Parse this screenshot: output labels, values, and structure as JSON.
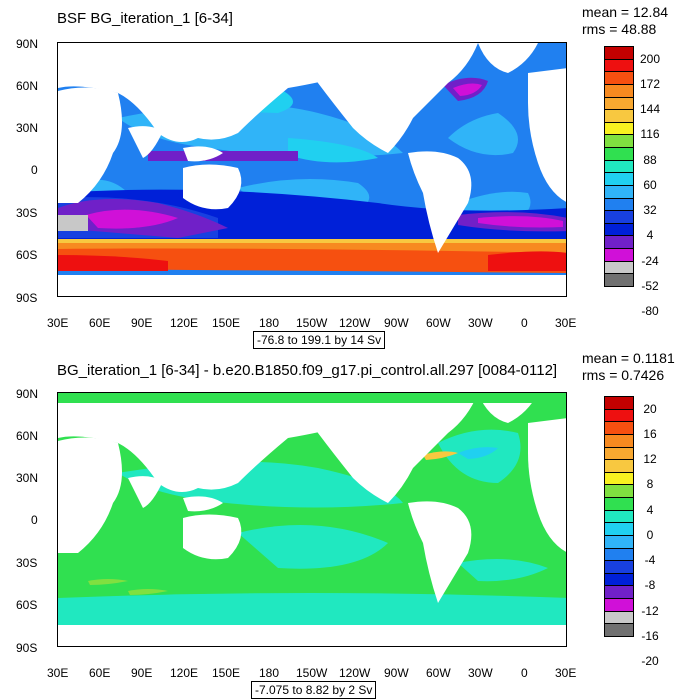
{
  "top_panel": {
    "title": "BSF BG_iteration_1 [6-34]",
    "mean_text": "mean = 12.84",
    "rms_text": "rms = 48.88",
    "range_text": "-76.8 to 199.1 by 14 Sv",
    "colorbar_labels": [
      "200",
      "172",
      "144",
      "116",
      "88",
      "60",
      "32",
      "4",
      "-24",
      "-52",
      "-80"
    ],
    "colorbar_colors": [
      "#c40000",
      "#ee1010",
      "#f65010",
      "#f78a20",
      "#f8a830",
      "#f8c840",
      "#f8f020",
      "#80e040",
      "#30e050",
      "#20e8c0",
      "#20d0f0",
      "#30b4f8",
      "#2080f0",
      "#1840e0",
      "#0020d8",
      "#7020c8",
      "#d010d8",
      "#c8c8c8",
      "#707070"
    ]
  },
  "bottom_panel": {
    "title": "BG_iteration_1 [6-34] - b.e20.B1850.f09_g17.pi_control.all.297 [0084-0112]",
    "mean_text": "mean = 0.1181",
    "rms_text": "rms = 0.7426",
    "range_text": "-7.075 to 8.82 by 2 Sv",
    "colorbar_labels": [
      "20",
      "16",
      "12",
      "8",
      "4",
      "0",
      "-4",
      "-8",
      "-12",
      "-16",
      "-20"
    ],
    "colorbar_colors": [
      "#c40000",
      "#ee1010",
      "#f65010",
      "#f78a20",
      "#f8a830",
      "#f8c840",
      "#f8f020",
      "#80e040",
      "#30e050",
      "#20e8c0",
      "#20d0f0",
      "#30b4f8",
      "#2080f0",
      "#1840e0",
      "#0020d8",
      "#7020c8",
      "#d010d8",
      "#c8c8c8",
      "#707070"
    ]
  },
  "axes": {
    "lat_labels": [
      "90N",
      "60N",
      "30N",
      "0",
      "30S",
      "60S",
      "90S"
    ],
    "lon_labels": [
      "30E",
      "60E",
      "90E",
      "120E",
      "150E",
      "180",
      "150W",
      "120W",
      "90W",
      "60W",
      "30W",
      "0",
      "30E"
    ]
  }
}
